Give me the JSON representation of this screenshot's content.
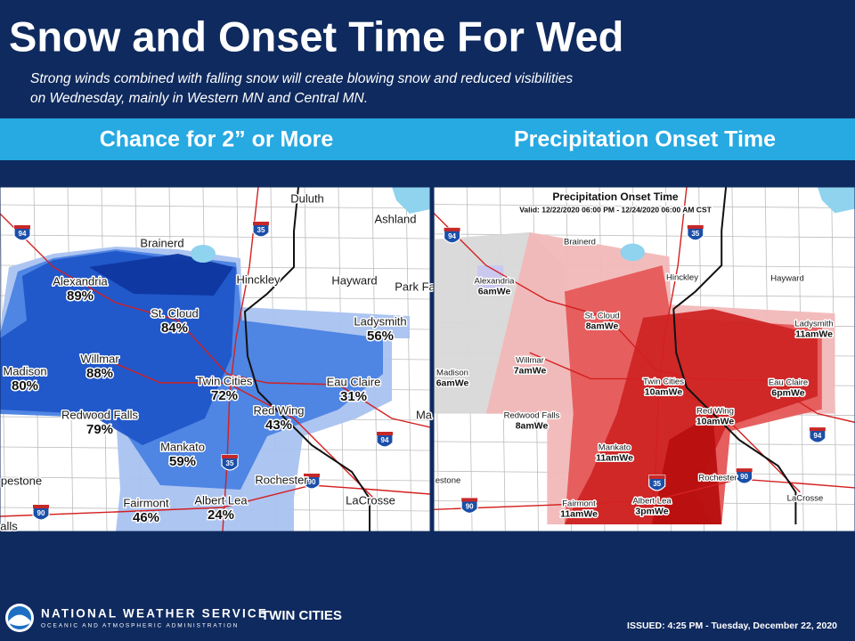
{
  "header": {
    "title": "Snow and Onset Time For Wed",
    "subtitle_lines": [
      "Strong winds combined with falling snow will create blowing snow and reduced visibilities",
      "on Wednesday, mainly in Western MN and Central MN."
    ]
  },
  "panels": {
    "left_title": "Chance for 2” or More",
    "right_title": "Precipitation  Onset Time"
  },
  "left_map": {
    "cities": [
      {
        "name": "Duluth"
      },
      {
        "name": "Ashland"
      },
      {
        "name": "Brainerd"
      },
      {
        "name": "Hinckley"
      },
      {
        "name": "Hayward"
      },
      {
        "name": "Park Fa"
      },
      {
        "name": "Alexandria",
        "value": "89%"
      },
      {
        "name": "St. Cloud",
        "value": "84%"
      },
      {
        "name": "Ladysmith",
        "value": "56%"
      },
      {
        "name": "Willmar",
        "value": "88%"
      },
      {
        "name": "Madison",
        "value": "80%"
      },
      {
        "name": "Twin Cities",
        "value": "72%"
      },
      {
        "name": "Eau Claire",
        "value": "31%"
      },
      {
        "name": "Redwood Falls",
        "value": "79%"
      },
      {
        "name": "Red Wing",
        "value": "43%"
      },
      {
        "name": "Ma"
      },
      {
        "name": "Mankato",
        "value": "59%"
      },
      {
        "name": "Rochester"
      },
      {
        "name": "pestone"
      },
      {
        "name": "Fairmont",
        "value": "46%"
      },
      {
        "name": "Albert Lea",
        "value": "24%"
      },
      {
        "name": "LaCrosse"
      },
      {
        "name": "alls"
      }
    ],
    "shields": [
      "94",
      "35",
      "35",
      "94",
      "90",
      "90"
    ]
  },
  "right_map": {
    "title": "Precipitation Onset Time",
    "valid": "Valid: 12/22/2020 06:00 PM - 12/24/2020 06:00 AM CST",
    "cities": [
      {
        "name": "Brainerd"
      },
      {
        "name": "Alexandria",
        "value": "6amWe"
      },
      {
        "name": "Hinckley"
      },
      {
        "name": "Hayward"
      },
      {
        "name": "St. Cloud",
        "value": "8amWe"
      },
      {
        "name": "Ladysmith",
        "value": "11amWe"
      },
      {
        "name": "Willmar",
        "value": "7amWe"
      },
      {
        "name": "Madison",
        "value": "6amWe"
      },
      {
        "name": "Twin Cities",
        "value": "10amWe"
      },
      {
        "name": "Eau Claire",
        "value": "6pmWe"
      },
      {
        "name": "Redwood Falls",
        "value": "8amWe"
      },
      {
        "name": "Red Wing",
        "value": "10amWe"
      },
      {
        "name": "Mankato",
        "value": "11amWe"
      },
      {
        "name": "Rochester"
      },
      {
        "name": "estone"
      },
      {
        "name": "Fairmont",
        "value": "11amWe"
      },
      {
        "name": "Albert Lea",
        "value": "3pmWe"
      },
      {
        "name": "LaCrosse"
      }
    ],
    "shields": [
      "94",
      "35",
      "35",
      "94",
      "90",
      "90"
    ]
  },
  "footer": {
    "agency": "NATIONAL WEATHER SERVICE",
    "parent": "OCEANIC AND ATMOSPHERIC ADMINISTRATION",
    "office": "TWIN CITIES",
    "issued": "ISSUED: 4:25 PM - Tuesday, December 22, 2020"
  }
}
